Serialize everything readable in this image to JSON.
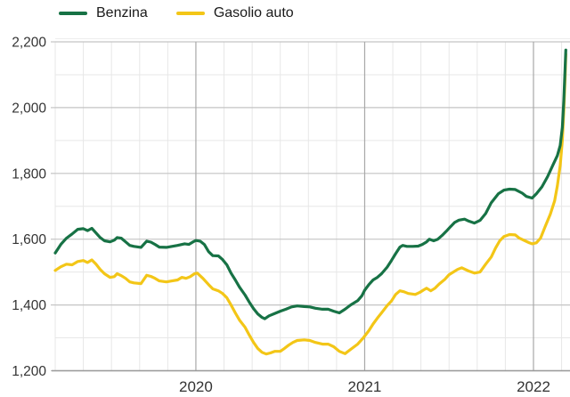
{
  "chart_data": {
    "type": "line",
    "title": "",
    "x_unit": "months from 2019-03",
    "xlim": [
      0,
      36.55
    ],
    "ylim": [
      1200,
      2212
    ],
    "grid": true,
    "legend_position": "top-left",
    "legend": [
      {
        "label": "Benzina",
        "color": "#177245"
      },
      {
        "label": "Gasolio auto",
        "color": "#F3C617"
      }
    ],
    "y_axis": {
      "major_ticks": [
        {
          "value": 1200,
          "label": "1,200"
        },
        {
          "value": 1400,
          "label": "1,400"
        },
        {
          "value": 1600,
          "label": "1,600"
        },
        {
          "value": 1800,
          "label": "1,800"
        },
        {
          "value": 2000,
          "label": "2,000"
        },
        {
          "value": 2200,
          "label": "2,200"
        }
      ],
      "minor_ticks": [
        1300,
        1500,
        1700,
        1900,
        2100
      ]
    },
    "x_axis": {
      "year_ticks": [
        {
          "label": "2020",
          "month": 10
        },
        {
          "label": "2021",
          "month": 22
        },
        {
          "label": "2022",
          "month": 34
        }
      ],
      "minor_grid_months": [
        0,
        2,
        4,
        6,
        8,
        12,
        14,
        16,
        18,
        20,
        24,
        26,
        28,
        30,
        32,
        36
      ]
    },
    "colors": {
      "grid_minor": "#e7e7e7",
      "grid_major_h": "#c4c4c4",
      "grid_year_v": "#a8a8a8",
      "axis_line": "#9a9a9a",
      "plot_border_top": "#ededed",
      "tick_label": "#333333"
    },
    "series": [
      {
        "name": "Gasolio auto",
        "color": "#F3C617",
        "points": [
          [
            0,
            1505
          ],
          [
            0.4,
            1516
          ],
          [
            0.8,
            1524
          ],
          [
            1.2,
            1522
          ],
          [
            1.6,
            1532
          ],
          [
            2,
            1535
          ],
          [
            2.3,
            1529
          ],
          [
            2.6,
            1537
          ],
          [
            2.9,
            1524
          ],
          [
            3.2,
            1508
          ],
          [
            3.5,
            1495
          ],
          [
            3.9,
            1484
          ],
          [
            4.2,
            1486
          ],
          [
            4.4,
            1495
          ],
          [
            4.7,
            1489
          ],
          [
            5,
            1481
          ],
          [
            5.3,
            1470
          ],
          [
            5.6,
            1467
          ],
          [
            6.1,
            1465
          ],
          [
            6.5,
            1490
          ],
          [
            6.8,
            1487
          ],
          [
            7.1,
            1481
          ],
          [
            7.4,
            1473
          ],
          [
            7.9,
            1470
          ],
          [
            8.3,
            1473
          ],
          [
            8.7,
            1476
          ],
          [
            9,
            1484
          ],
          [
            9.3,
            1481
          ],
          [
            9.6,
            1486
          ],
          [
            9.9,
            1495
          ],
          [
            10.1,
            1497
          ],
          [
            10.5,
            1481
          ],
          [
            10.9,
            1462
          ],
          [
            11.2,
            1449
          ],
          [
            11.6,
            1443
          ],
          [
            11.9,
            1435
          ],
          [
            12.2,
            1422
          ],
          [
            12.5,
            1400
          ],
          [
            12.8,
            1376
          ],
          [
            13.1,
            1354
          ],
          [
            13.5,
            1332
          ],
          [
            13.8,
            1308
          ],
          [
            14.1,
            1286
          ],
          [
            14.4,
            1268
          ],
          [
            14.7,
            1256
          ],
          [
            15,
            1251
          ],
          [
            15.3,
            1254
          ],
          [
            15.6,
            1259
          ],
          [
            16,
            1259
          ],
          [
            16.3,
            1268
          ],
          [
            16.6,
            1278
          ],
          [
            16.9,
            1286
          ],
          [
            17.2,
            1292
          ],
          [
            17.7,
            1294
          ],
          [
            18.1,
            1292
          ],
          [
            18.5,
            1286
          ],
          [
            19,
            1281
          ],
          [
            19.4,
            1281
          ],
          [
            19.8,
            1273
          ],
          [
            20.2,
            1259
          ],
          [
            20.6,
            1252
          ],
          [
            21,
            1265
          ],
          [
            21.5,
            1281
          ],
          [
            21.9,
            1300
          ],
          [
            22.3,
            1322
          ],
          [
            22.6,
            1342
          ],
          [
            22.9,
            1360
          ],
          [
            23.2,
            1376
          ],
          [
            23.6,
            1398
          ],
          [
            23.9,
            1412
          ],
          [
            24.2,
            1432
          ],
          [
            24.5,
            1443
          ],
          [
            24.8,
            1440
          ],
          [
            25.1,
            1435
          ],
          [
            25.6,
            1432
          ],
          [
            25.9,
            1438
          ],
          [
            26.2,
            1446
          ],
          [
            26.4,
            1451
          ],
          [
            26.7,
            1443
          ],
          [
            27,
            1451
          ],
          [
            27.3,
            1464
          ],
          [
            27.7,
            1478
          ],
          [
            28,
            1492
          ],
          [
            28.3,
            1500
          ],
          [
            28.6,
            1508
          ],
          [
            28.9,
            1513
          ],
          [
            29.4,
            1503
          ],
          [
            29.8,
            1497
          ],
          [
            30.2,
            1500
          ],
          [
            30.6,
            1524
          ],
          [
            31,
            1546
          ],
          [
            31.3,
            1573
          ],
          [
            31.6,
            1595
          ],
          [
            31.9,
            1608
          ],
          [
            32.3,
            1614
          ],
          [
            32.7,
            1613
          ],
          [
            33,
            1603
          ],
          [
            33.4,
            1595
          ],
          [
            33.7,
            1589
          ],
          [
            33.9,
            1586
          ],
          [
            34.2,
            1589
          ],
          [
            34.5,
            1603
          ],
          [
            34.8,
            1635
          ],
          [
            35.2,
            1676
          ],
          [
            35.5,
            1716
          ],
          [
            35.7,
            1762
          ],
          [
            35.9,
            1824
          ],
          [
            36.05,
            1900
          ],
          [
            36.15,
            1990
          ],
          [
            36.25,
            2090
          ],
          [
            36.3,
            2162
          ]
        ]
      },
      {
        "name": "Benzina",
        "color": "#177245",
        "points": [
          [
            0,
            1558
          ],
          [
            0.4,
            1584
          ],
          [
            0.8,
            1603
          ],
          [
            1.2,
            1616
          ],
          [
            1.6,
            1630
          ],
          [
            2,
            1632
          ],
          [
            2.3,
            1626
          ],
          [
            2.6,
            1633
          ],
          [
            2.9,
            1619
          ],
          [
            3.2,
            1605
          ],
          [
            3.5,
            1595
          ],
          [
            3.9,
            1592
          ],
          [
            4.2,
            1597
          ],
          [
            4.4,
            1605
          ],
          [
            4.7,
            1603
          ],
          [
            5,
            1592
          ],
          [
            5.3,
            1581
          ],
          [
            5.6,
            1578
          ],
          [
            6.1,
            1575
          ],
          [
            6.5,
            1594
          ],
          [
            6.8,
            1591
          ],
          [
            7.1,
            1584
          ],
          [
            7.4,
            1576
          ],
          [
            7.9,
            1575
          ],
          [
            8.3,
            1578
          ],
          [
            8.7,
            1581
          ],
          [
            9.2,
            1586
          ],
          [
            9.5,
            1584
          ],
          [
            9.8,
            1592
          ],
          [
            10,
            1596
          ],
          [
            10.3,
            1594
          ],
          [
            10.6,
            1584
          ],
          [
            10.9,
            1562
          ],
          [
            11.2,
            1550
          ],
          [
            11.6,
            1549
          ],
          [
            11.9,
            1538
          ],
          [
            12.2,
            1522
          ],
          [
            12.5,
            1497
          ],
          [
            12.8,
            1476
          ],
          [
            13.1,
            1454
          ],
          [
            13.5,
            1430
          ],
          [
            13.8,
            1408
          ],
          [
            14.1,
            1389
          ],
          [
            14.4,
            1373
          ],
          [
            14.7,
            1362
          ],
          [
            14.9,
            1358
          ],
          [
            15.2,
            1367
          ],
          [
            15.5,
            1372
          ],
          [
            16,
            1381
          ],
          [
            16.4,
            1387
          ],
          [
            16.8,
            1394
          ],
          [
            17.2,
            1397
          ],
          [
            17.7,
            1395
          ],
          [
            18.1,
            1394
          ],
          [
            18.5,
            1390
          ],
          [
            19,
            1387
          ],
          [
            19.4,
            1387
          ],
          [
            19.8,
            1381
          ],
          [
            20.2,
            1376
          ],
          [
            20.6,
            1387
          ],
          [
            21,
            1400
          ],
          [
            21.5,
            1413
          ],
          [
            21.8,
            1428
          ],
          [
            22,
            1445
          ],
          [
            22.3,
            1462
          ],
          [
            22.6,
            1476
          ],
          [
            22.9,
            1484
          ],
          [
            23.2,
            1495
          ],
          [
            23.6,
            1515
          ],
          [
            23.9,
            1535
          ],
          [
            24.2,
            1556
          ],
          [
            24.5,
            1576
          ],
          [
            24.7,
            1581
          ],
          [
            25,
            1578
          ],
          [
            25.4,
            1578
          ],
          [
            25.8,
            1579
          ],
          [
            26.1,
            1584
          ],
          [
            26.4,
            1592
          ],
          [
            26.6,
            1600
          ],
          [
            26.9,
            1595
          ],
          [
            27.2,
            1600
          ],
          [
            27.5,
            1611
          ],
          [
            27.8,
            1624
          ],
          [
            28.1,
            1638
          ],
          [
            28.4,
            1651
          ],
          [
            28.7,
            1658
          ],
          [
            29.1,
            1661
          ],
          [
            29.4,
            1655
          ],
          [
            29.8,
            1649
          ],
          [
            30.2,
            1657
          ],
          [
            30.6,
            1678
          ],
          [
            31,
            1711
          ],
          [
            31.5,
            1738
          ],
          [
            31.9,
            1749
          ],
          [
            32.3,
            1752
          ],
          [
            32.7,
            1751
          ],
          [
            33.2,
            1740
          ],
          [
            33.5,
            1730
          ],
          [
            33.9,
            1725
          ],
          [
            34.2,
            1738
          ],
          [
            34.6,
            1759
          ],
          [
            35,
            1790
          ],
          [
            35.4,
            1827
          ],
          [
            35.7,
            1854
          ],
          [
            35.9,
            1885
          ],
          [
            36.05,
            1940
          ],
          [
            36.15,
            2020
          ],
          [
            36.25,
            2120
          ],
          [
            36.3,
            2175
          ]
        ]
      }
    ]
  }
}
